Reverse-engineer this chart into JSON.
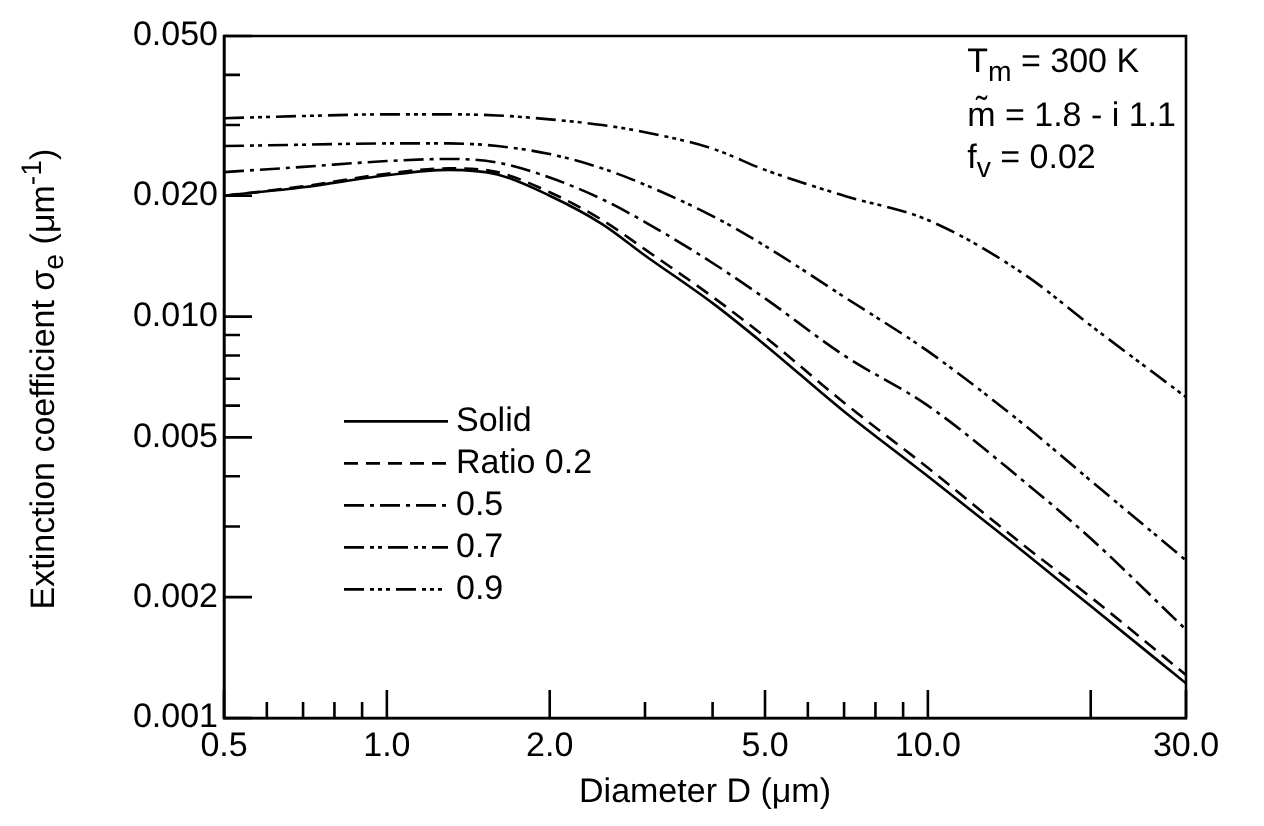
{
  "chart_data": {
    "type": "line",
    "xlabel": "Diameter D (μm)",
    "ylabel": "Extinction coefficient σ$_{e}$ (μm$^{-1}$)",
    "log": "xy",
    "grid": false,
    "legend": "bottom left",
    "marker": "none",
    "xlim": [
      0.5,
      30
    ],
    "ylim": [
      0.001,
      0.05
    ],
    "xticks": [
      {
        "value": 0.5,
        "label": "0.5"
      },
      {
        "value": 0.6,
        "label": null
      },
      {
        "value": 0.7,
        "label": null
      },
      {
        "value": 0.8,
        "label": null
      },
      {
        "value": 0.9,
        "label": null
      },
      {
        "value": 1,
        "label": "1.0"
      },
      {
        "value": 2,
        "label": "2.0"
      },
      {
        "value": 3,
        "label": null
      },
      {
        "value": 4,
        "label": null
      },
      {
        "value": 5,
        "label": "5.0"
      },
      {
        "value": 6,
        "label": null
      },
      {
        "value": 7,
        "label": null
      },
      {
        "value": 8,
        "label": null
      },
      {
        "value": 9,
        "label": null
      },
      {
        "value": 10,
        "label": "10.0"
      },
      {
        "value": 20,
        "label": null
      },
      {
        "value": 30,
        "label": "30.0"
      }
    ],
    "yticks": [
      0.001,
      0.002,
      {
        "value": 0.003,
        "label": null
      },
      {
        "value": 0.004,
        "label": null
      },
      0.005,
      {
        "value": 0.006,
        "label": null
      },
      {
        "value": 0.007,
        "label": null
      },
      {
        "value": 0.008,
        "label": null
      },
      {
        "value": 0.009,
        "label": null
      },
      {
        "value": 0.01,
        "label": "0.010"
      },
      {
        "value": 0.02,
        "label": "0.020"
      },
      {
        "value": 0.03,
        "label": null
      },
      {
        "value": 0.04,
        "label": null
      },
      {
        "value": 0.05,
        "label": "0.050"
      }
    ],
    "x": [
      0.5,
      0.7,
      1.0,
      1.3,
      1.6,
      2.0,
      2.5,
      3.0,
      4.0,
      5.0,
      7.0,
      10,
      15,
      20,
      30
    ],
    "series": [
      {
        "name": "Solid",
        "color": "#000000",
        "line_style": "solid",
        "values": [
          0.02,
          0.021,
          0.0225,
          0.0232,
          0.0226,
          0.02,
          0.017,
          0.0142,
          0.0108,
          0.0085,
          0.0058,
          0.004,
          0.0026,
          0.0019,
          0.00122
        ]
      },
      {
        "name": "Ratio 0.2",
        "color": "#000000",
        "line_style": "dashed",
        "values": [
          0.02,
          0.0211,
          0.0227,
          0.0234,
          0.0229,
          0.0204,
          0.0174,
          0.0147,
          0.0112,
          0.0089,
          0.0061,
          0.0042,
          0.0027,
          0.002,
          0.00128
        ]
      },
      {
        "name": "0.5",
        "color": "#000000",
        "line_style": "dashdot",
        "values": [
          0.0229,
          0.0236,
          0.0244,
          0.0247,
          0.0242,
          0.0222,
          0.0196,
          0.0172,
          0.0136,
          0.0111,
          0.008,
          0.006,
          0.0039,
          0.0028,
          0.00166
        ]
      },
      {
        "name": "0.7",
        "color": "#000000",
        "line_style": "dashdotdot",
        "values": [
          0.0266,
          0.0268,
          0.027,
          0.027,
          0.0266,
          0.0254,
          0.0234,
          0.0213,
          0.0178,
          0.015,
          0.0112,
          0.0082,
          0.0054,
          0.0039,
          0.00247
        ]
      },
      {
        "name": "0.9",
        "color": "#000000",
        "line_style": "dashdotdotdot",
        "values": [
          0.0312,
          0.0316,
          0.0319,
          0.0319,
          0.0317,
          0.031,
          0.03,
          0.0288,
          0.0262,
          0.0232,
          0.02,
          0.0174,
          0.0128,
          0.0095,
          0.0063
        ]
      }
    ],
    "annotations": [
      "T$_{m}$ = 300 K",
      "m̃ = 1.8 - i 1.1",
      "f$_{v}$ = 0.02"
    ]
  }
}
